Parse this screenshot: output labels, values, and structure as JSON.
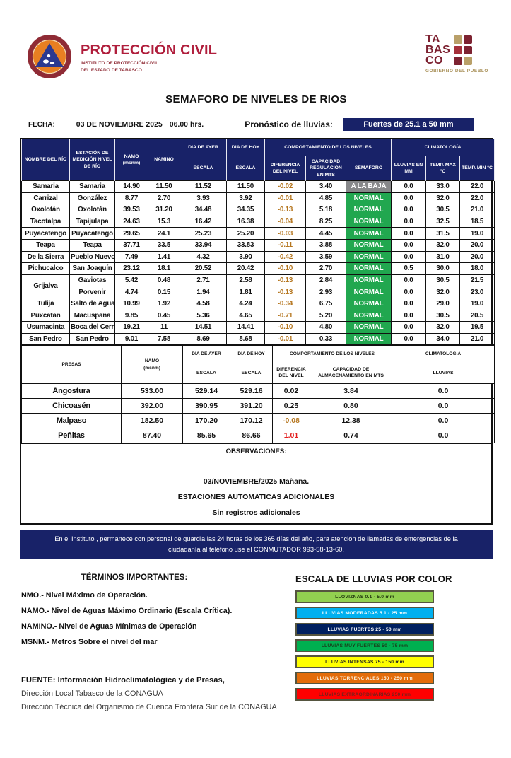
{
  "colors": {
    "navy": "#182268",
    "normal_green": "#21a74f",
    "baja_gray": "#87888a",
    "diff_negative": "#b5761f",
    "diff_alert": "#e31e1e"
  },
  "header": {
    "logo": {
      "name": "PROTECCIÓN CIVIL",
      "sub1": "INSTITUTO DE PROTECCIÓN CIVIL",
      "sub2": "DEL ESTADO DE TABASCO"
    },
    "tabasco": {
      "lines": [
        "TA",
        "BAS",
        "CO"
      ],
      "tagline": "GOBIERNO DEL PUEBLO"
    },
    "title": "SEMAFORO DE NIVELES DE RIOS"
  },
  "meta": {
    "fecha_label": "FECHA:",
    "fecha_value": "03 DE NOVIEMBRE 2025",
    "hora_value": "06.00  hrs.",
    "pronostico_label": "Pronóstico de lluvias:",
    "pronostico_value": "Fuertes de 25.1 a 50 mm"
  },
  "rivers": {
    "col_headers": {
      "nombre": "NOMBRE DEL RÍO",
      "estacion": "ESTACIÓN DE MEDICIÓN NIVEL DE RÍO",
      "namo_l1": "NAMO",
      "namo_l2": "(msnm)",
      "namino": "NAMINO",
      "ayer": "DIA DE AYER",
      "hoy": "DIA DE HOY",
      "escala": "ESCALA",
      "comportamiento": "COMPORTAMIENTO DE LOS NIVELES",
      "diferencia": "DIFERENCIA DEL NIVEL",
      "capacidad": "CAPACIDAD REGULACION EN MTS",
      "semaforo": "SEMAFORO",
      "climatologia": "CLIMATOLOGÍA",
      "lluvias": "LLUVIAS EN MM",
      "tmax": "TEMP. MAX °C",
      "tmin": "TEMP. MIN °C"
    },
    "rows": [
      {
        "rio": "Samaria",
        "estacion": "Samaria",
        "namo": "14.90",
        "namino": "11.50",
        "ayer": "11.52",
        "hoy": "11.50",
        "dif": "-0.02",
        "cap": "3.40",
        "semaforo": "A LA BAJA",
        "semaforo_color": "#87888a",
        "lluvia": "0.0",
        "tmax": "33.0",
        "tmin": "22.0"
      },
      {
        "rio": "Carrizal",
        "estacion": "González",
        "namo": "8.77",
        "namino": "2.70",
        "ayer": "3.93",
        "hoy": "3.92",
        "dif": "-0.01",
        "cap": "4.85",
        "semaforo": "NORMAL",
        "semaforo_color": "#21a74f",
        "lluvia": "0.0",
        "tmax": "32.0",
        "tmin": "22.0"
      },
      {
        "rio": "Oxolotán",
        "estacion": "Oxolotán",
        "namo": "39.53",
        "namino": "31.20",
        "ayer": "34.48",
        "hoy": "34.35",
        "dif": "-0.13",
        "cap": "5.18",
        "semaforo": "NORMAL",
        "semaforo_color": "#21a74f",
        "lluvia": "0.0",
        "tmax": "30.5",
        "tmin": "21.0"
      },
      {
        "rio": "Tacotalpa",
        "estacion": "Tapijulapa",
        "namo": "24.63",
        "namino": "15.3",
        "ayer": "16.42",
        "hoy": "16.38",
        "dif": "-0.04",
        "cap": "8.25",
        "semaforo": "NORMAL",
        "semaforo_color": "#21a74f",
        "lluvia": "0.0",
        "tmax": "32.5",
        "tmin": "18.5"
      },
      {
        "rio": "Puyacatengo",
        "estacion": "Puyacatengo",
        "namo": "29.65",
        "namino": "24.1",
        "ayer": "25.23",
        "hoy": "25.20",
        "dif": "-0.03",
        "cap": "4.45",
        "semaforo": "NORMAL",
        "semaforo_color": "#21a74f",
        "lluvia": "0.0",
        "tmax": "31.5",
        "tmin": "19.0"
      },
      {
        "rio": "Teapa",
        "estacion": "Teapa",
        "namo": "37.71",
        "namino": "33.5",
        "ayer": "33.94",
        "hoy": "33.83",
        "dif": "-0.11",
        "cap": "3.88",
        "semaforo": "NORMAL",
        "semaforo_color": "#21a74f",
        "lluvia": "0.0",
        "tmax": "32.0",
        "tmin": "20.0"
      },
      {
        "rio": "De la Sierra",
        "estacion": "Pueblo Nuevo",
        "namo": "7.49",
        "namino": "1.41",
        "ayer": "4.32",
        "hoy": "3.90",
        "dif": "-0.42",
        "cap": "3.59",
        "semaforo": "NORMAL",
        "semaforo_color": "#21a74f",
        "lluvia": "0.0",
        "tmax": "31.0",
        "tmin": "20.0"
      },
      {
        "rio": "Pichucalco",
        "estacion": "San Joaquín",
        "namo": "23.12",
        "namino": "18.1",
        "ayer": "20.52",
        "hoy": "20.42",
        "dif": "-0.10",
        "cap": "2.70",
        "semaforo": "NORMAL",
        "semaforo_color": "#21a74f",
        "lluvia": "0.5",
        "tmax": "30.0",
        "tmin": "18.0"
      },
      {
        "rio": "Grijalva",
        "rio_rowspan": 2,
        "estacion": "Gaviotas",
        "namo": "5.42",
        "namino": "0.48",
        "ayer": "2.71",
        "hoy": "2.58",
        "dif": "-0.13",
        "cap": "2.84",
        "semaforo": "NORMAL",
        "semaforo_color": "#21a74f",
        "lluvia": "0.0",
        "tmax": "30.5",
        "tmin": "21.5"
      },
      {
        "rio": null,
        "estacion": "Porvenir",
        "namo": "4.74",
        "namino": "0.15",
        "ayer": "1.94",
        "hoy": "1.81",
        "dif": "-0.13",
        "cap": "2.93",
        "semaforo": "NORMAL",
        "semaforo_color": "#21a74f",
        "lluvia": "0.0",
        "tmax": "32.0",
        "tmin": "23.0"
      },
      {
        "rio": "Tulija",
        "estacion": "Salto de Agua",
        "namo": "10.99",
        "namino": "1.92",
        "ayer": "4.58",
        "hoy": "4.24",
        "dif": "-0.34",
        "cap": "6.75",
        "semaforo": "NORMAL",
        "semaforo_color": "#21a74f",
        "lluvia": "0.0",
        "tmax": "29.0",
        "tmin": "19.0"
      },
      {
        "rio": "Puxcatan",
        "estacion": "Macuspana",
        "namo": "9.85",
        "namino": "0.45",
        "ayer": "5.36",
        "hoy": "4.65",
        "dif": "-0.71",
        "cap": "5.20",
        "semaforo": "NORMAL",
        "semaforo_color": "#21a74f",
        "lluvia": "0.0",
        "tmax": "30.5",
        "tmin": "20.5"
      },
      {
        "rio": "Usumacinta",
        "estacion": "Boca del Cerro",
        "namo": "19.21",
        "namino": "11",
        "ayer": "14.51",
        "hoy": "14.41",
        "dif": "-0.10",
        "cap": "4.80",
        "semaforo": "NORMAL",
        "semaforo_color": "#21a74f",
        "lluvia": "0.0",
        "tmax": "32.0",
        "tmin": "19.5"
      },
      {
        "rio": "San Pedro",
        "estacion": "San Pedro",
        "namo": "9.01",
        "namino": "7.58",
        "ayer": "8.69",
        "hoy": "8.68",
        "dif": "-0.01",
        "cap": "0.33",
        "semaforo": "NORMAL",
        "semaforo_color": "#21a74f",
        "lluvia": "0.0",
        "tmax": "34.0",
        "tmin": "21.0"
      }
    ]
  },
  "presas": {
    "headers": {
      "presas": "PRESAS",
      "namo_l1": "NAMO",
      "namo_l2": "(msnm)",
      "ayer": "DIA DE AYER",
      "hoy": "DIA DE HOY",
      "escala": "ESCALA",
      "comportamiento": "COMPORTAMIENTO DE LOS NIVELES",
      "diferencia": "DIFERENCIA DEL NIVEL",
      "capacidad": "CAPACIDAD DE ALMACENAMIENTO EN MTS",
      "climatologia": "CLIMATOLOGÍA",
      "lluvias": "LLUVIAS"
    },
    "rows": [
      {
        "presa": "Angostura",
        "namo": "533.00",
        "ayer": "529.14",
        "hoy": "529.16",
        "dif": "0.02",
        "dif_state": "pos",
        "cap": "3.84",
        "lluvia": "0.0"
      },
      {
        "presa": "Chicoasén",
        "namo": "392.00",
        "ayer": "390.95",
        "hoy": "391.20",
        "dif": "0.25",
        "dif_state": "pos",
        "cap": "0.80",
        "lluvia": "0.0"
      },
      {
        "presa": "Malpaso",
        "namo": "182.50",
        "ayer": "170.20",
        "hoy": "170.12",
        "dif": "-0.08",
        "dif_state": "neg",
        "cap": "12.38",
        "lluvia": "0.0"
      },
      {
        "presa": "Peñitas",
        "namo": "87.40",
        "ayer": "85.65",
        "hoy": "86.66",
        "dif": "1.01",
        "dif_state": "alert",
        "cap": "0.74",
        "lluvia": "0.0"
      }
    ]
  },
  "observaciones": {
    "title": "OBSERVACIONES:",
    "lines": [
      "03/NOVIEMBRE/2025 Mañana.",
      "ESTACIONES AUTOMATICAS ADICIONALES",
      "Sin registros adicionales"
    ]
  },
  "notice": "En el Instituto , permanece con personal de guardia las 24 horas de los 365 días del año, para atención de llamadas de emergencias de la ciudadanía al teléfono use el CONMUTADOR  993-58-13-60.",
  "terminos": {
    "title": "TÉRMINOS IMPORTANTES:",
    "items": [
      "NMO.- Nivel Máximo de Operación.",
      "NAMO.- Nivel de Aguas Máximo Ordinario (Escala Crítica).",
      "NAMINO.- Nivel de Aguas Mínimas de Operación",
      "MSNM.- Metros Sobre el nivel del mar"
    ]
  },
  "escala_lluvias": {
    "title": "ESCALA DE LLUVIAS POR COLOR",
    "items": [
      {
        "label": "LLOVIZNAS   0.1 -  5.0 mm",
        "bg": "#92d050",
        "text": "#233a10"
      },
      {
        "label": "LLUVIAS MODERADAS 5.1 - 25 mm",
        "bg": "#00b0f0",
        "text": "#ffffff"
      },
      {
        "label": "LLUVIAS FUERTES       25 - 50 mm",
        "bg": "#002060",
        "text": "#ffffff"
      },
      {
        "label": "LLUVIAS MUY FUERTES   50 - 75 mm",
        "bg": "#00b050",
        "text": "#17421c"
      },
      {
        "label": "LLUVIAS INTENSAS   75 - 150 mm",
        "bg": "#ffff00",
        "text": "#222222"
      },
      {
        "label": "LLUVIAS TORRENCIALES  150 - 250  mm",
        "bg": "#e36c0a",
        "text": "#fdf3e0"
      },
      {
        "label": "LLUVIAS EXTRAORDINARIAS 250  mm",
        "bg": "#ff0000",
        "text": "#7a1f1a"
      }
    ]
  },
  "fuente": {
    "line1": "FUENTE: Información Hidroclimatológica y de Presas,",
    "line2": "Dirección Local Tabasco de la CONAGUA",
    "line3": "Dirección Técnica del Organismo de Cuenca Frontera Sur de la CONAGUA"
  }
}
